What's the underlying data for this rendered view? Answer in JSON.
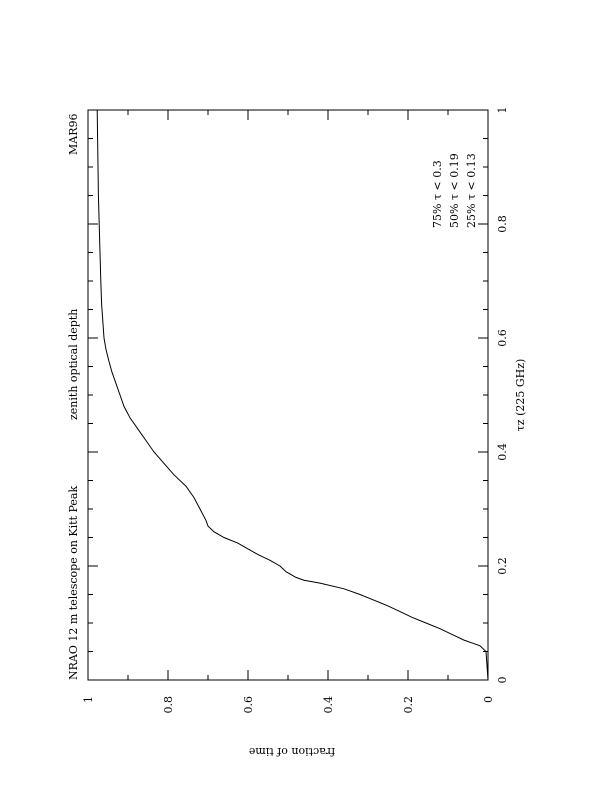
{
  "chart_data": {
    "type": "line",
    "title_left": "NRAO 12 m telescope on Kitt Peak",
    "title_right": "zenith optical depth",
    "period_label": "MAR96",
    "xlabel": "τz (225 GHz)",
    "ylabel": "fraction of time",
    "xlim": [
      0,
      1
    ],
    "ylim": [
      0,
      1
    ],
    "x_ticks": [
      0,
      0.2,
      0.4,
      0.6,
      0.8,
      1
    ],
    "x_tick_labels": [
      "0",
      "0.2",
      "0.4",
      "0.6",
      "0.8",
      "1"
    ],
    "y_ticks": [
      0,
      0.2,
      0.4,
      0.6,
      0.8,
      1
    ],
    "y_tick_labels": [
      "0",
      "0.2",
      "0.4",
      "0.6",
      "0.8",
      "1"
    ],
    "stats": [
      "75%  τ < 0.3",
      "50%  τ < 0.19",
      "25%  τ < 0.13"
    ],
    "series": [
      {
        "x": [
          0.0,
          0.05,
          0.06,
          0.065,
          0.07,
          0.08,
          0.09,
          0.1,
          0.11,
          0.12,
          0.13,
          0.14,
          0.15,
          0.16,
          0.17,
          0.175,
          0.18,
          0.19,
          0.2,
          0.21,
          0.22,
          0.23,
          0.24,
          0.25,
          0.26,
          0.27,
          0.28,
          0.3,
          0.32,
          0.34,
          0.36,
          0.38,
          0.4,
          0.42,
          0.44,
          0.46,
          0.48,
          0.5,
          0.52,
          0.54,
          0.56,
          0.58,
          0.6,
          0.63,
          0.66,
          0.7,
          0.75,
          0.8,
          0.85,
          0.9,
          0.95,
          1.0
        ],
        "y": [
          0.0,
          0.005,
          0.02,
          0.04,
          0.06,
          0.09,
          0.12,
          0.155,
          0.19,
          0.22,
          0.25,
          0.285,
          0.32,
          0.36,
          0.42,
          0.46,
          0.48,
          0.505,
          0.52,
          0.545,
          0.575,
          0.6,
          0.625,
          0.66,
          0.685,
          0.7,
          0.705,
          0.72,
          0.735,
          0.755,
          0.785,
          0.81,
          0.835,
          0.855,
          0.875,
          0.895,
          0.91,
          0.92,
          0.93,
          0.94,
          0.948,
          0.955,
          0.96,
          0.963,
          0.966,
          0.968,
          0.97,
          0.972,
          0.974,
          0.975,
          0.976,
          0.977
        ]
      }
    ]
  }
}
